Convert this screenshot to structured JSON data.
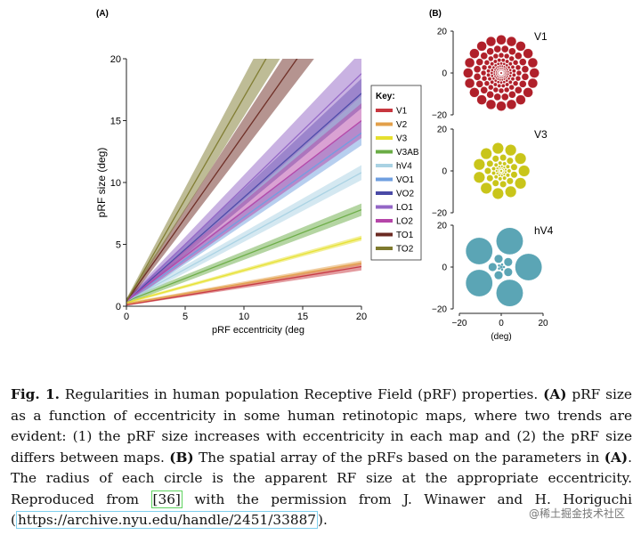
{
  "panel_a_label": "(A)",
  "panel_b_label": "(B)",
  "legend_title": "Key:",
  "chart_data": [
    {
      "type": "line",
      "panel": "(A)",
      "xlabel": "pRF eccentricity (deg",
      "ylabel": "pRF size (deg)",
      "xlim": [
        0,
        20
      ],
      "ylim": [
        0,
        20
      ],
      "xticks": [
        0,
        5,
        10,
        15,
        20
      ],
      "yticks": [
        0,
        5,
        10,
        15,
        20
      ],
      "grid": false,
      "legend_position": "right",
      "series": [
        {
          "name": "V1",
          "color": "#c7373f",
          "x": [
            0,
            20
          ],
          "y": [
            0.1,
            3.2
          ],
          "band_lo": [
            0.05,
            2.9
          ],
          "band_hi": [
            0.15,
            3.5
          ]
        },
        {
          "name": "V2",
          "color": "#e3a04a",
          "x": [
            0,
            20
          ],
          "y": [
            0.2,
            3.5
          ],
          "band_lo": [
            0.1,
            3.3
          ],
          "band_hi": [
            0.3,
            3.7
          ]
        },
        {
          "name": "V3",
          "color": "#e6e02e",
          "x": [
            0,
            20
          ],
          "y": [
            0.3,
            5.5
          ],
          "band_lo": [
            0.2,
            5.3
          ],
          "band_hi": [
            0.4,
            5.7
          ]
        },
        {
          "name": "V3AB",
          "color": "#6aac45",
          "x": [
            0,
            20
          ],
          "y": [
            0.4,
            7.8
          ],
          "band_lo": [
            0.2,
            7.3
          ],
          "band_hi": [
            0.6,
            8.3
          ]
        },
        {
          "name": "hV4",
          "color": "#a9d2e3",
          "x": [
            0,
            20
          ],
          "y": [
            0.4,
            10.8
          ],
          "band_lo": [
            0.2,
            10.2
          ],
          "band_hi": [
            0.6,
            11.4
          ]
        },
        {
          "name": "VO1",
          "color": "#6f9fe0",
          "x": [
            0,
            20
          ],
          "y": [
            0.4,
            14.0
          ],
          "band_lo": [
            0.2,
            13.0
          ],
          "band_hi": [
            0.6,
            15.0
          ]
        },
        {
          "name": "VO2",
          "color": "#4a4aa6",
          "x": [
            0,
            20
          ],
          "y": [
            0.4,
            17.2
          ],
          "band_lo": [
            0.2,
            16.0
          ],
          "band_hi": [
            0.6,
            18.4
          ]
        },
        {
          "name": "LO1",
          "color": "#9366c6",
          "x": [
            0,
            20
          ],
          "y": [
            0.4,
            18.8
          ],
          "band_lo": [
            0.2,
            17.0
          ],
          "band_hi": [
            0.6,
            20.6
          ]
        },
        {
          "name": "LO2",
          "color": "#b545a8",
          "x": [
            0,
            20
          ],
          "y": [
            0.4,
            15.0
          ],
          "band_lo": [
            0.2,
            13.6
          ],
          "band_hi": [
            0.6,
            16.4
          ]
        },
        {
          "name": "TO1",
          "color": "#6b2a22",
          "x": [
            0,
            20
          ],
          "y": [
            0.4,
            27.4
          ],
          "band_lo": [
            0.2,
            25.0
          ],
          "band_hi": [
            0.6,
            29.8
          ]
        },
        {
          "name": "TO2",
          "color": "#7e7a2e",
          "x": [
            0,
            20
          ],
          "y": [
            0.4,
            33.4
          ],
          "band_lo": [
            0.2,
            30.5
          ],
          "band_hi": [
            0.6,
            36.5
          ]
        }
      ]
    },
    {
      "type": "scatter",
      "panel": "(B)",
      "xlabel": "(deg)",
      "xticks": [
        -20,
        0,
        20
      ],
      "yticks": [
        20,
        0,
        -20
      ],
      "subplots": [
        {
          "name": "V1",
          "color": "#b0202a",
          "slope": 0.155
        },
        {
          "name": "V3",
          "color": "#c9c51a",
          "slope": 0.26
        },
        {
          "name": "hV4",
          "color": "#5ba5b5",
          "slope": 0.52
        }
      ]
    }
  ],
  "caption": {
    "fig_label": "Fig. 1.",
    "part1": " Regularities in human population Receptive Field (pRF) properties. ",
    "label_a": "(A)",
    "part2": " pRF size as a function of eccentricity in some human retinotopic maps, where two trends are evident: (1) the pRF size increases with eccentricity in each map and (2) the pRF size differs between maps. ",
    "label_b": "(B)",
    "part3": " The spatial array of the pRFs based on the parameters in ",
    "label_a2": "(A)",
    "part4": ". The radius of each circle is the apparent RF size at the appropriate eccentricity. Reproduced from ",
    "ref": "[36]",
    "part5": " with the permission from J. Winawer and H. Horiguchi (",
    "url": "https://archive.nyu.edu/handle/2451/33887",
    "part6": ")."
  },
  "watermark": "@稀土掘金技术社区"
}
